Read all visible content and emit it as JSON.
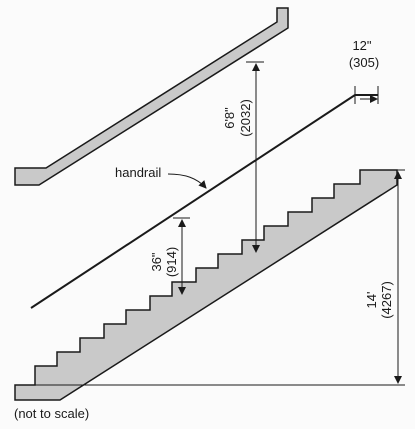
{
  "labels": {
    "handrail": "handrail",
    "headroom_imperial": "6'8\"",
    "headroom_metric": "(2032)",
    "rail_height_imperial": "36\"",
    "rail_height_metric": "(914)",
    "rise_imperial": "14'",
    "rise_metric": "(4267)",
    "extension_imperial": "12\"",
    "extension_metric": "(305)",
    "note": "(not to scale)"
  },
  "colors": {
    "line": "#1a1a1a",
    "shade": "#c9c9c9",
    "background": "#fbfbfb"
  }
}
